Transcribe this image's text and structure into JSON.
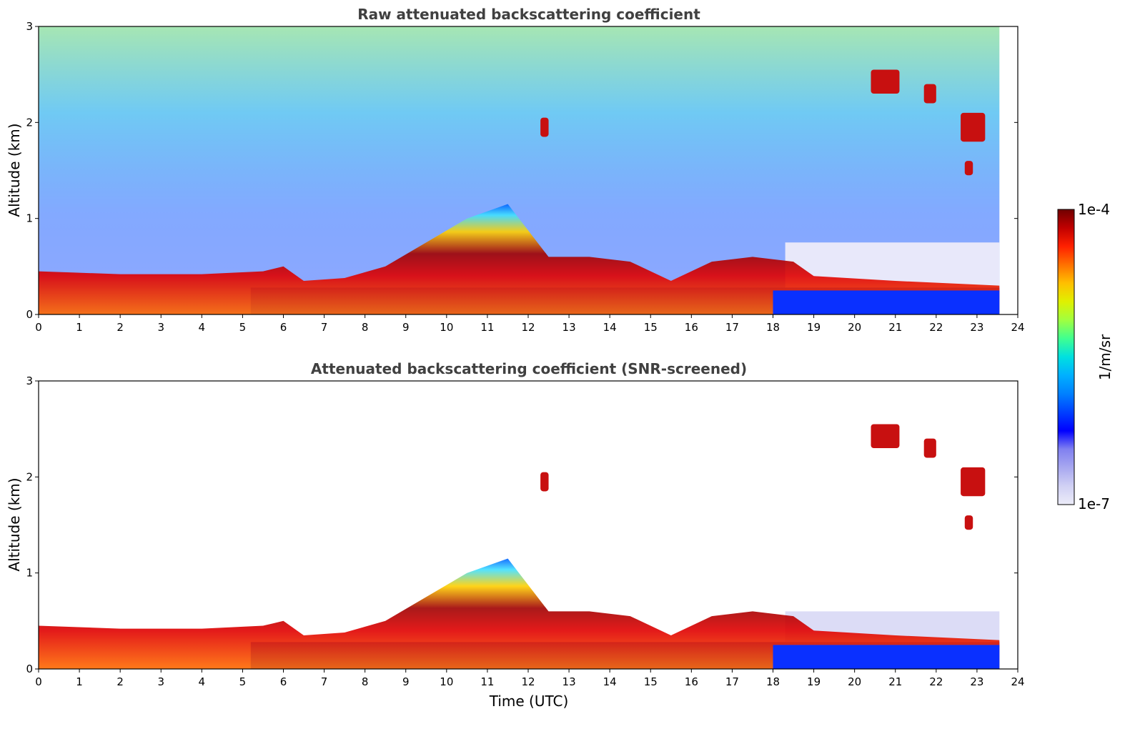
{
  "chart_data": [
    {
      "type": "heatmap",
      "title": "Raw attenuated backscattering coefficient",
      "xlabel": "",
      "ylabel": "Altitude (km)",
      "xlim": [
        0,
        24
      ],
      "ylim": [
        0,
        3
      ],
      "xticks": [
        0,
        1,
        2,
        3,
        4,
        5,
        6,
        7,
        8,
        9,
        10,
        11,
        12,
        13,
        14,
        15,
        16,
        17,
        18,
        19,
        20,
        21,
        22,
        23,
        24
      ],
      "yticks": [
        0,
        1,
        2,
        3
      ],
      "data_end_hour": 23.55,
      "boundary_layer_top_km": [
        [
          0,
          0.45
        ],
        [
          2,
          0.42
        ],
        [
          4,
          0.42
        ],
        [
          5.5,
          0.45
        ],
        [
          6,
          0.5
        ],
        [
          6.5,
          0.35
        ],
        [
          7.5,
          0.38
        ],
        [
          8.5,
          0.5
        ],
        [
          9.5,
          0.75
        ],
        [
          10.5,
          1.0
        ],
        [
          11.5,
          1.15
        ],
        [
          12.5,
          0.6
        ],
        [
          13.5,
          0.6
        ],
        [
          14.5,
          0.55
        ],
        [
          15.5,
          0.35
        ],
        [
          16.5,
          0.55
        ],
        [
          17.5,
          0.6
        ],
        [
          18.5,
          0.55
        ],
        [
          19,
          0.4
        ],
        [
          21,
          0.35
        ],
        [
          23.55,
          0.3
        ]
      ],
      "clouds": [
        {
          "hour_start": 20.4,
          "hour_end": 21.1,
          "alt_bottom_km": 2.3,
          "alt_top_km": 2.55
        },
        {
          "hour_start": 21.7,
          "hour_end": 22.0,
          "alt_bottom_km": 2.2,
          "alt_top_km": 2.4
        },
        {
          "hour_start": 22.6,
          "hour_end": 23.2,
          "alt_bottom_km": 1.8,
          "alt_top_km": 2.1
        },
        {
          "hour_start": 22.7,
          "hour_end": 22.9,
          "alt_bottom_km": 1.45,
          "alt_top_km": 1.6
        },
        {
          "hour_start": 12.3,
          "hour_end": 12.5,
          "alt_bottom_km": 1.85,
          "alt_top_km": 2.05
        }
      ]
    },
    {
      "type": "heatmap",
      "title": "Attenuated backscattering coefficient (SNR-screened)",
      "xlabel": "Time (UTC)",
      "ylabel": "Altitude (km)",
      "xlim": [
        0,
        24
      ],
      "ylim": [
        0,
        3
      ],
      "xticks": [
        0,
        1,
        2,
        3,
        4,
        5,
        6,
        7,
        8,
        9,
        10,
        11,
        12,
        13,
        14,
        15,
        16,
        17,
        18,
        19,
        20,
        21,
        22,
        23,
        24
      ],
      "yticks": [
        0,
        1,
        2,
        3
      ],
      "data_end_hour": 23.55
    }
  ],
  "colorbar": {
    "label": "1/m/sr",
    "max_label": "1e-4",
    "min_label": "1e-7",
    "colors": [
      "#ececf8",
      "#d0d0f4",
      "#a8a8f0",
      "#8080f0",
      "#0000ff",
      "#0040ff",
      "#0080ff",
      "#00b0ff",
      "#00e0e0",
      "#40ff90",
      "#a0ff40",
      "#e0f000",
      "#ffc000",
      "#ff7000",
      "#ff2000",
      "#c00000",
      "#700000"
    ]
  },
  "colors": {
    "background_white": "#ffffff",
    "low_signal_blue": "#0020ff",
    "high_signal_red": "#c80000",
    "title_gray": "#404040"
  }
}
